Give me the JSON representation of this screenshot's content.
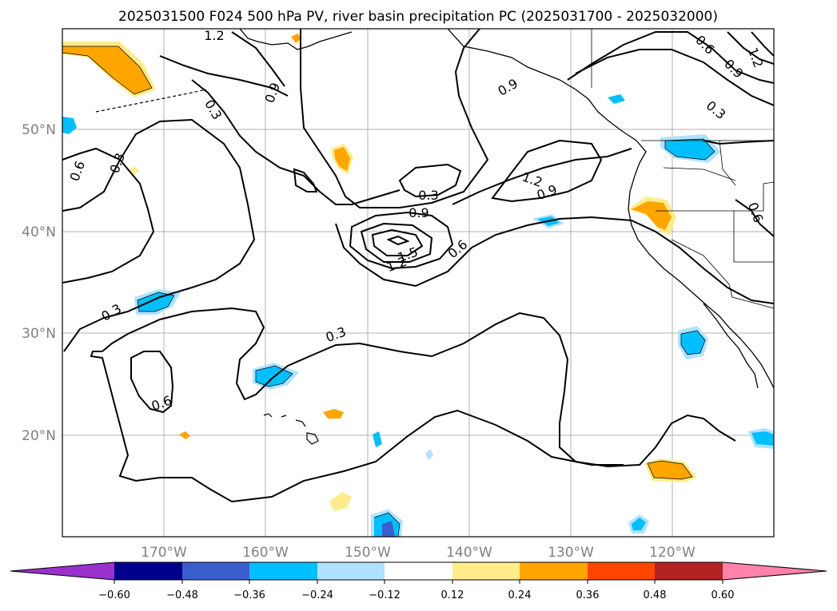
{
  "title": "2025031500 F024 500 hPa PV, river basin precipitation PC (2025031700 - 2025032000)",
  "lat_labels": [
    "50°N",
    "40°N",
    "30°N",
    "20°N"
  ],
  "lon_labels": [
    "170°W",
    "160°W",
    "150°W",
    "140°W",
    "130°W",
    "120°W"
  ],
  "contour_labels": [
    "1.2",
    "0.9",
    "0.3",
    "0.6",
    "0.3",
    "0.9",
    "0.6",
    "0.9",
    "1.2",
    "0.3",
    "0.3",
    "0.9",
    "1.2",
    "0.9",
    "1.5",
    "1.2",
    "0.6",
    "0.3",
    "0.3",
    "0.6",
    "0.6"
  ],
  "colorbar": {
    "colors": [
      "#9932cc",
      "#00008b",
      "#3a5fcd",
      "#00bfff",
      "#b0e2ff",
      "#ffffff",
      "#ffec8b",
      "#ffa500",
      "#ff4500",
      "#b22222",
      "#ff82ab"
    ],
    "tick_labels": [
      "−0.60",
      "−0.48",
      "−0.36",
      "−0.24",
      "−0.12",
      "0.12",
      "0.24",
      "0.36",
      "0.48",
      "0.60"
    ]
  }
}
